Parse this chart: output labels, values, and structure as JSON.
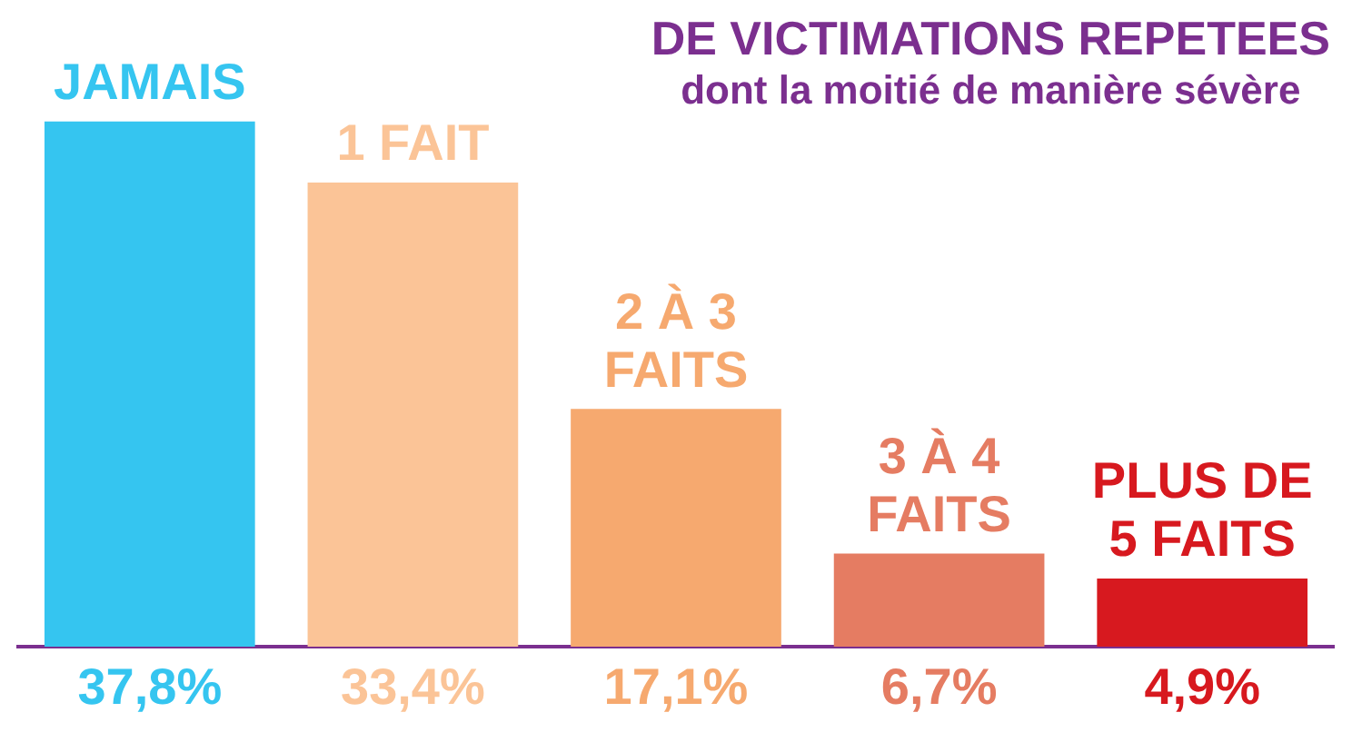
{
  "chart_data": {
    "type": "bar",
    "title": "DE VICTIMATIONS REPETEES",
    "subtitle": "dont la moitié de manière sévère",
    "categories": [
      "JAMAIS",
      "1 FAIT",
      "2 À 3 FAITS",
      "3 À 4 FAITS",
      "PLUS DE 5 FAITS"
    ],
    "values": [
      37.8,
      33.4,
      17.1,
      6.7,
      4.9
    ],
    "colors": [
      "#35c5f0",
      "#fbc497",
      "#f6a96f",
      "#e57c62",
      "#d7191f"
    ],
    "value_labels": [
      "37,8%",
      "33,4%",
      "17,1%",
      "6,7%",
      "4,9%"
    ]
  }
}
